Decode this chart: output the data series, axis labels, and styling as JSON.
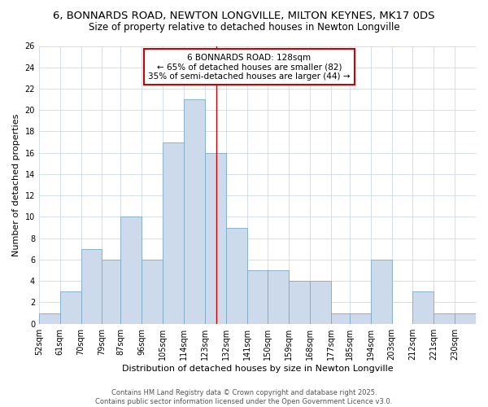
{
  "title1": "6, BONNARDS ROAD, NEWTON LONGVILLE, MILTON KEYNES, MK17 0DS",
  "title2": "Size of property relative to detached houses in Newton Longville",
  "xlabel": "Distribution of detached houses by size in Newton Longville",
  "ylabel": "Number of detached properties",
  "bin_labels": [
    "52sqm",
    "61sqm",
    "70sqm",
    "79sqm",
    "87sqm",
    "96sqm",
    "105sqm",
    "114sqm",
    "123sqm",
    "132sqm",
    "141sqm",
    "150sqm",
    "159sqm",
    "168sqm",
    "177sqm",
    "185sqm",
    "194sqm",
    "203sqm",
    "212sqm",
    "221sqm",
    "230sqm"
  ],
  "bin_edges": [
    52,
    61,
    70,
    79,
    87,
    96,
    105,
    114,
    123,
    132,
    141,
    150,
    159,
    168,
    177,
    185,
    194,
    203,
    212,
    221,
    230,
    239
  ],
  "counts": [
    1,
    3,
    7,
    6,
    10,
    6,
    17,
    21,
    16,
    9,
    5,
    5,
    4,
    4,
    1,
    1,
    6,
    0,
    3,
    1,
    1
  ],
  "bar_facecolor": "#ccdaeb",
  "bar_edgecolor": "#7aaac8",
  "property_size": 128,
  "vline_color": "#cc0000",
  "annotation_line1": "6 BONNARDS ROAD: 128sqm",
  "annotation_line2": "← 65% of detached houses are smaller (82)",
  "annotation_line3": "35% of semi-detached houses are larger (44) →",
  "annotation_box_edgecolor": "#cc0000",
  "grid_color": "#d0d8e8",
  "background_color": "#ffffff",
  "footer_text": "Contains HM Land Registry data © Crown copyright and database right 2025.\nContains public sector information licensed under the Open Government Licence v3.0.",
  "ylim": [
    0,
    26
  ],
  "yticks": [
    0,
    2,
    4,
    6,
    8,
    10,
    12,
    14,
    16,
    18,
    20,
    22,
    24,
    26
  ],
  "title_fontsize": 9.5,
  "subtitle_fontsize": 8.5,
  "axis_label_fontsize": 8,
  "tick_fontsize": 7,
  "annotation_fontsize": 7.5,
  "footer_fontsize": 6
}
